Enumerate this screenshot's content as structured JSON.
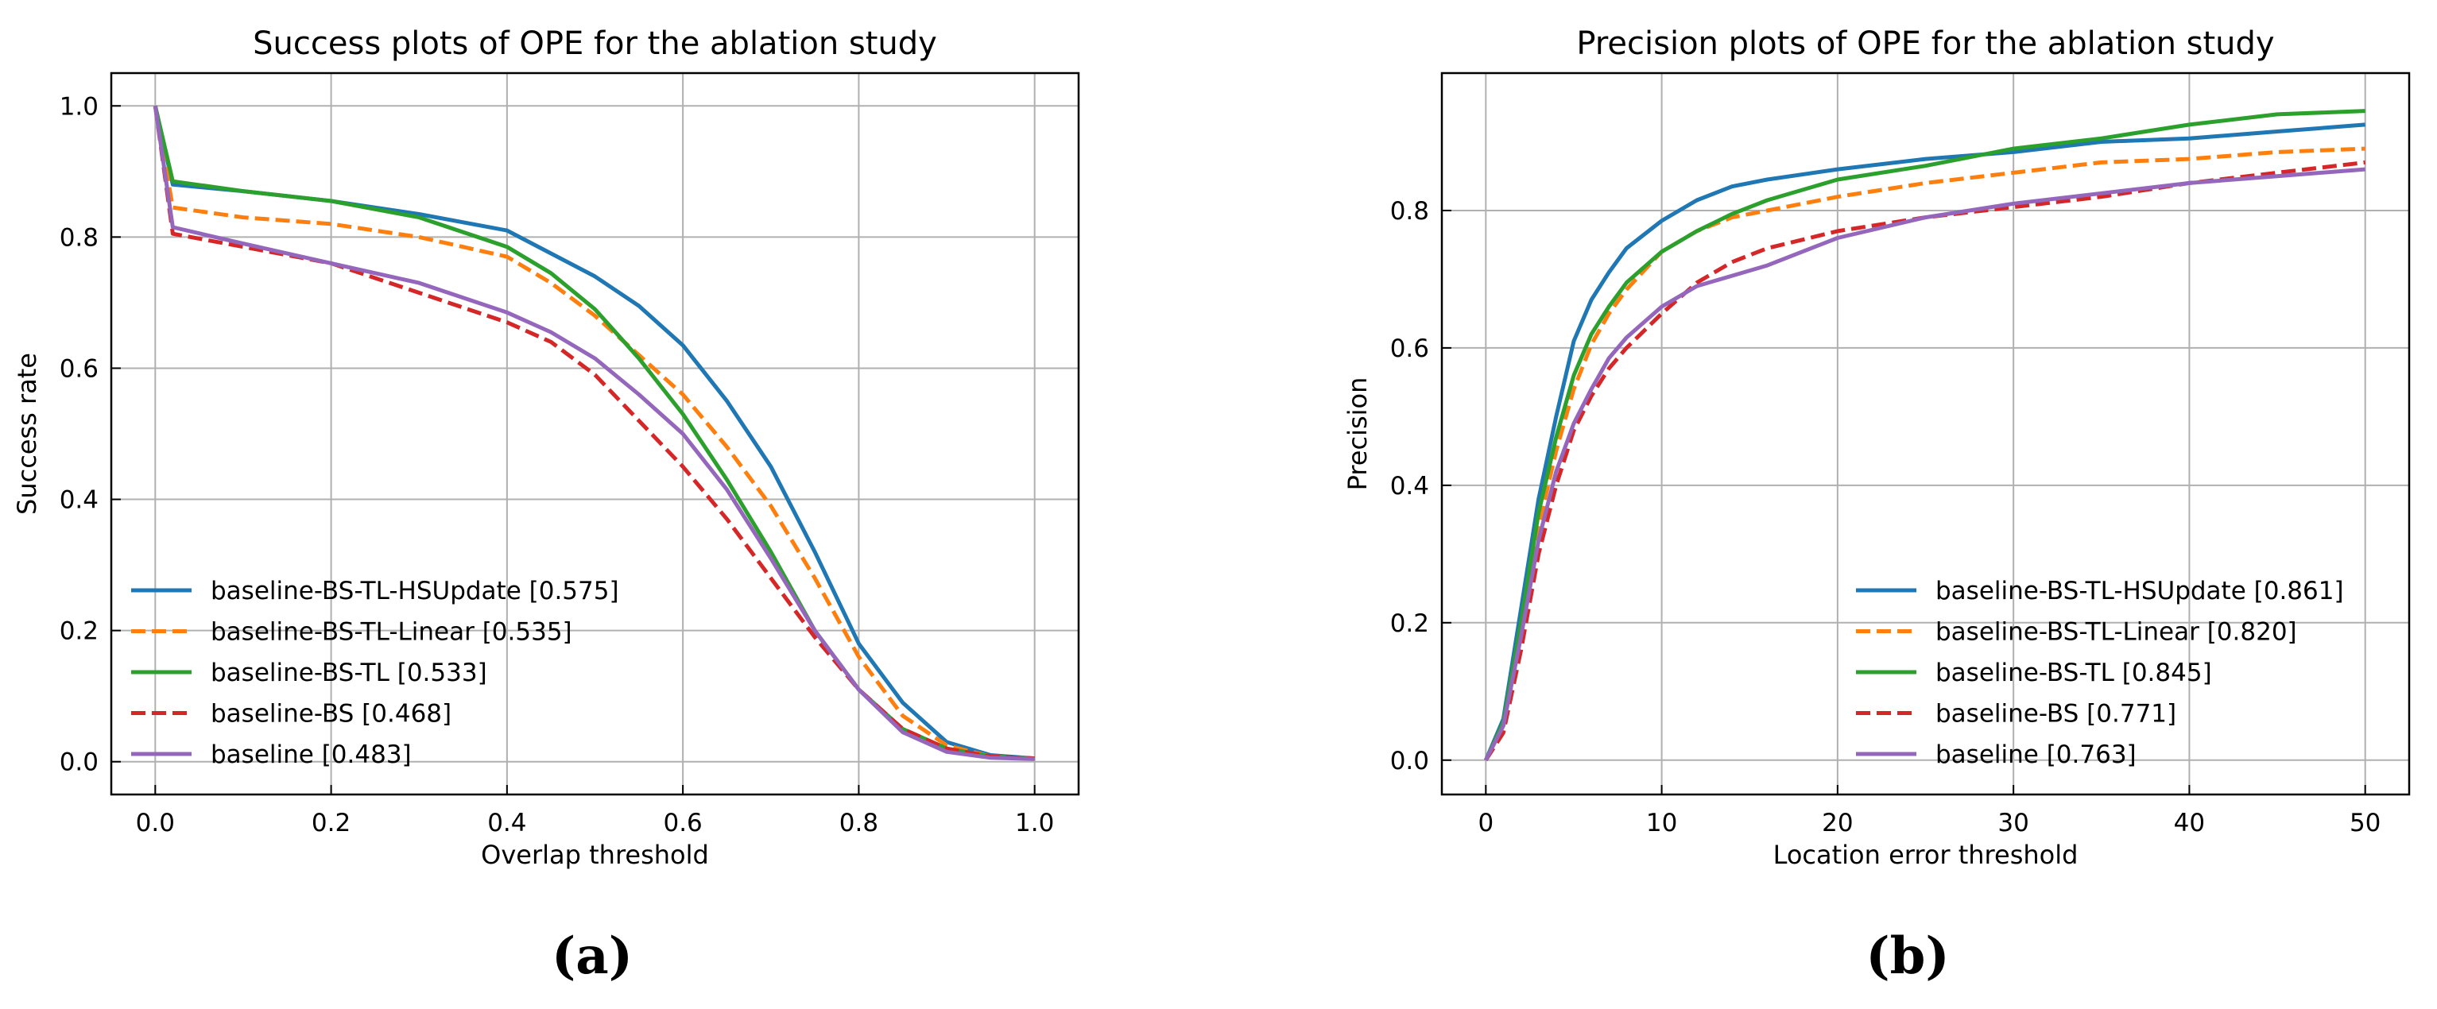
{
  "chart_data": [
    {
      "type": "line",
      "title": "Success plots of OPE for the ablation study",
      "xlabel": "Overlap threshold",
      "ylabel": "Success rate",
      "xlim": [
        -0.05,
        1.05
      ],
      "ylim": [
        -0.05,
        1.05
      ],
      "xticks": [
        0.0,
        0.2,
        0.4,
        0.6,
        0.8,
        1.0
      ],
      "yticks": [
        0.0,
        0.2,
        0.4,
        0.6,
        0.8,
        1.0
      ],
      "xtick_labels": [
        "0.0",
        "0.2",
        "0.4",
        "0.6",
        "0.8",
        "1.0"
      ],
      "ytick_labels": [
        "0.0",
        "0.2",
        "0.4",
        "0.6",
        "0.8",
        "1.0"
      ],
      "grid": true,
      "legend_position": "lower-left",
      "panel_label": "(a)",
      "series": [
        {
          "name": "baseline-BS-TL-HSUpdate [0.575]",
          "color": "#1f77b4",
          "dash": "solid",
          "x": [
            0,
            0.02,
            0.1,
            0.2,
            0.3,
            0.4,
            0.45,
            0.5,
            0.55,
            0.6,
            0.65,
            0.7,
            0.75,
            0.8,
            0.85,
            0.9,
            0.95,
            1.0
          ],
          "y": [
            1.0,
            0.88,
            0.87,
            0.855,
            0.835,
            0.81,
            0.775,
            0.74,
            0.695,
            0.635,
            0.55,
            0.45,
            0.32,
            0.18,
            0.09,
            0.03,
            0.01,
            0.005
          ]
        },
        {
          "name": "baseline-BS-TL-Linear [0.535]",
          "color": "#ff7f0e",
          "dash": "dashed",
          "x": [
            0,
            0.02,
            0.1,
            0.2,
            0.3,
            0.4,
            0.45,
            0.5,
            0.55,
            0.6,
            0.65,
            0.7,
            0.75,
            0.8,
            0.85,
            0.9,
            0.95,
            1.0
          ],
          "y": [
            1.0,
            0.845,
            0.83,
            0.82,
            0.8,
            0.77,
            0.73,
            0.68,
            0.62,
            0.56,
            0.48,
            0.39,
            0.28,
            0.16,
            0.07,
            0.025,
            0.008,
            0.005
          ]
        },
        {
          "name": "baseline-BS-TL [0.533]",
          "color": "#2ca02c",
          "dash": "solid",
          "x": [
            0,
            0.02,
            0.1,
            0.2,
            0.3,
            0.4,
            0.45,
            0.5,
            0.55,
            0.6,
            0.65,
            0.7,
            0.75,
            0.8,
            0.85,
            0.9,
            0.95,
            1.0
          ],
          "y": [
            1.0,
            0.885,
            0.87,
            0.855,
            0.83,
            0.785,
            0.745,
            0.69,
            0.615,
            0.53,
            0.43,
            0.32,
            0.2,
            0.11,
            0.05,
            0.02,
            0.008,
            0.005
          ]
        },
        {
          "name": "baseline-BS [0.468]",
          "color": "#d62728",
          "dash": "dashed",
          "x": [
            0,
            0.02,
            0.1,
            0.2,
            0.3,
            0.4,
            0.45,
            0.5,
            0.55,
            0.6,
            0.65,
            0.7,
            0.75,
            0.8,
            0.85,
            0.9,
            0.95,
            1.0
          ],
          "y": [
            1.0,
            0.805,
            0.785,
            0.76,
            0.715,
            0.67,
            0.64,
            0.59,
            0.52,
            0.45,
            0.37,
            0.28,
            0.19,
            0.11,
            0.05,
            0.02,
            0.008,
            0.005
          ]
        },
        {
          "name": "baseline [0.483]",
          "color": "#9467bd",
          "dash": "solid",
          "x": [
            0,
            0.02,
            0.1,
            0.2,
            0.3,
            0.4,
            0.45,
            0.5,
            0.55,
            0.6,
            0.65,
            0.7,
            0.75,
            0.8,
            0.85,
            0.9,
            0.95,
            1.0
          ],
          "y": [
            1.0,
            0.815,
            0.79,
            0.76,
            0.73,
            0.685,
            0.655,
            0.615,
            0.56,
            0.5,
            0.415,
            0.31,
            0.2,
            0.11,
            0.045,
            0.015,
            0.006,
            0.004
          ]
        }
      ]
    },
    {
      "type": "line",
      "title": "Precision plots of OPE for the ablation study",
      "xlabel": "Location error threshold",
      "ylabel": "Precision",
      "xlim": [
        -2.5,
        52.5
      ],
      "ylim": [
        -0.05,
        1.0
      ],
      "xticks": [
        0,
        10,
        20,
        30,
        40,
        50
      ],
      "yticks": [
        0.0,
        0.2,
        0.4,
        0.6,
        0.8
      ],
      "xtick_labels": [
        "0",
        "10",
        "20",
        "30",
        "40",
        "50"
      ],
      "ytick_labels": [
        "0.0",
        "0.2",
        "0.4",
        "0.6",
        "0.8"
      ],
      "grid": true,
      "legend_position": "lower-right",
      "panel_label": "(b)",
      "series": [
        {
          "name": "baseline-BS-TL-HSUpdate [0.861]",
          "color": "#1f77b4",
          "dash": "solid",
          "x": [
            0,
            1,
            2,
            3,
            4,
            5,
            6,
            7,
            8,
            10,
            12,
            14,
            16,
            20,
            25,
            30,
            35,
            40,
            45,
            50
          ],
          "y": [
            0,
            0.06,
            0.22,
            0.38,
            0.5,
            0.61,
            0.67,
            0.71,
            0.745,
            0.785,
            0.815,
            0.835,
            0.845,
            0.86,
            0.875,
            0.885,
            0.9,
            0.905,
            0.915,
            0.925
          ]
        },
        {
          "name": "baseline-BS-TL-Linear [0.820]",
          "color": "#ff7f0e",
          "dash": "dashed",
          "x": [
            0,
            1,
            2,
            3,
            4,
            5,
            6,
            7,
            8,
            10,
            12,
            14,
            16,
            20,
            25,
            30,
            35,
            40,
            45,
            50
          ],
          "y": [
            0,
            0.05,
            0.19,
            0.34,
            0.45,
            0.54,
            0.605,
            0.65,
            0.685,
            0.74,
            0.77,
            0.79,
            0.8,
            0.82,
            0.84,
            0.855,
            0.87,
            0.875,
            0.885,
            0.89
          ]
        },
        {
          "name": "baseline-BS-TL [0.845]",
          "color": "#2ca02c",
          "dash": "solid",
          "x": [
            0,
            1,
            2,
            3,
            4,
            5,
            6,
            7,
            8,
            10,
            12,
            14,
            16,
            20,
            25,
            30,
            35,
            40,
            45,
            50
          ],
          "y": [
            0,
            0.055,
            0.2,
            0.36,
            0.47,
            0.56,
            0.62,
            0.66,
            0.695,
            0.74,
            0.77,
            0.795,
            0.815,
            0.845,
            0.865,
            0.89,
            0.905,
            0.925,
            0.94,
            0.945
          ]
        },
        {
          "name": "baseline-BS [0.771]",
          "color": "#d62728",
          "dash": "dashed",
          "x": [
            0,
            1,
            2,
            3,
            4,
            5,
            6,
            7,
            8,
            10,
            12,
            14,
            16,
            20,
            25,
            30,
            35,
            40,
            45,
            50
          ],
          "y": [
            0,
            0.04,
            0.16,
            0.3,
            0.4,
            0.48,
            0.53,
            0.57,
            0.6,
            0.65,
            0.695,
            0.725,
            0.745,
            0.77,
            0.79,
            0.805,
            0.82,
            0.84,
            0.855,
            0.87
          ]
        },
        {
          "name": "baseline [0.763]",
          "color": "#9467bd",
          "dash": "solid",
          "x": [
            0,
            1,
            2,
            3,
            4,
            5,
            6,
            7,
            8,
            10,
            12,
            14,
            16,
            20,
            25,
            30,
            35,
            40,
            45,
            50
          ],
          "y": [
            0,
            0.05,
            0.18,
            0.32,
            0.42,
            0.49,
            0.54,
            0.585,
            0.615,
            0.66,
            0.69,
            0.705,
            0.72,
            0.76,
            0.79,
            0.81,
            0.825,
            0.84,
            0.85,
            0.86
          ]
        }
      ]
    }
  ]
}
